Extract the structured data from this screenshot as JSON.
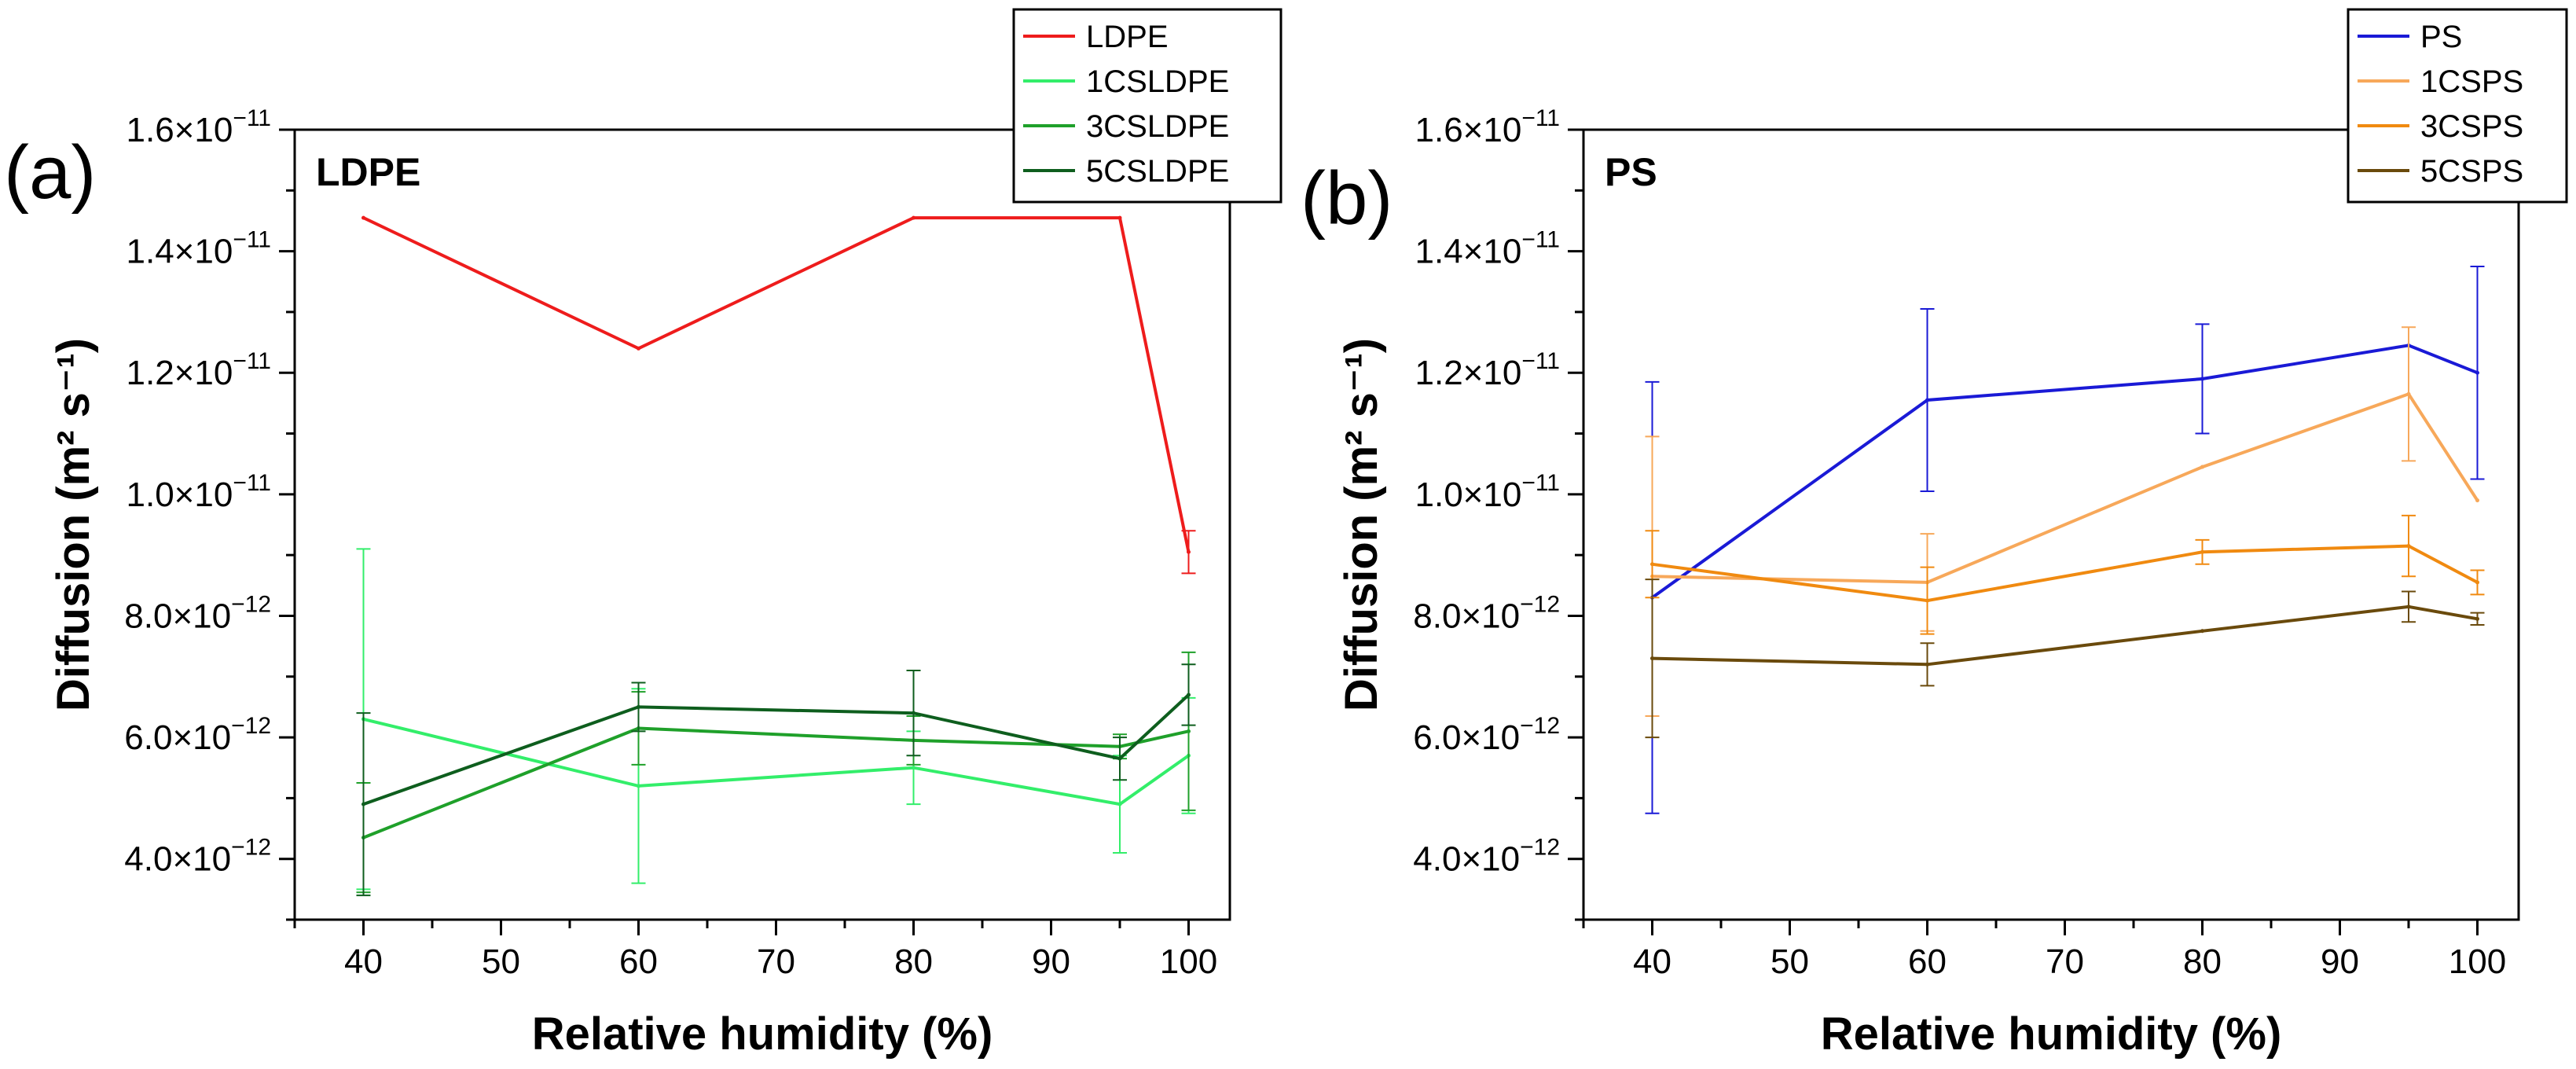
{
  "chart_data": [
    {
      "type": "line",
      "panel_label": "(a)",
      "title": "LDPE",
      "xlabel": "Relative humidity (%)",
      "ylabel": "Diffusion (m² s⁻¹)",
      "xlim": [
        35,
        103
      ],
      "ylim": [
        3e-12,
        1.6e-11
      ],
      "xticks": [
        40,
        50,
        60,
        70,
        80,
        90,
        100
      ],
      "yticks": [
        4e-12,
        6e-12,
        8e-12,
        1e-11,
        1.2e-11,
        1.4e-11,
        1.6e-11
      ],
      "ytick_labels": [
        {
          "mant": "4.0×10",
          "exp": "−12"
        },
        {
          "mant": "6.0×10",
          "exp": "−12"
        },
        {
          "mant": "8.0×10",
          "exp": "−12"
        },
        {
          "mant": "1.0×10",
          "exp": "−11"
        },
        {
          "mant": "1.2×10",
          "exp": "−11"
        },
        {
          "mant": "1.4×10",
          "exp": "−11"
        },
        {
          "mant": "1.6×10",
          "exp": "−11"
        }
      ],
      "legend_position": "top-right",
      "series": [
        {
          "name": "LDPE",
          "color": "#ee1c1c",
          "x": [
            40,
            60,
            80,
            95,
            100
          ],
          "values": [
            1.455e-11,
            1.24e-11,
            1.455e-11,
            1.455e-11,
            9.05e-12
          ],
          "errors": [
            0,
            0,
            0,
            0,
            3.5e-13
          ]
        },
        {
          "name": "1CSLDPE",
          "color": "#33ee6a",
          "x": [
            40,
            60,
            80,
            95,
            100
          ],
          "values": [
            6.3e-12,
            5.2e-12,
            5.5e-12,
            4.9e-12,
            5.7e-12
          ],
          "errors": [
            2.8e-12,
            1.6e-12,
            6e-13,
            8e-13,
            9.5e-13
          ]
        },
        {
          "name": "3CSLDPE",
          "color": "#1fa02a",
          "x": [
            40,
            60,
            80,
            95,
            100
          ],
          "values": [
            4.35e-12,
            6.15e-12,
            5.95e-12,
            5.85e-12,
            6.1e-12
          ],
          "errors": [
            9e-13,
            6e-13,
            4e-13,
            2e-13,
            1.3e-12
          ]
        },
        {
          "name": "5CSLDPE",
          "color": "#0e5e1e",
          "x": [
            40,
            60,
            80,
            95,
            100
          ],
          "values": [
            4.9e-12,
            6.5e-12,
            6.4e-12,
            5.65e-12,
            6.7e-12
          ],
          "errors": [
            1.5e-12,
            4e-13,
            7e-13,
            3.5e-13,
            5e-13
          ]
        }
      ]
    },
    {
      "type": "line",
      "panel_label": "(b)",
      "title": "PS",
      "xlabel": "Relative humidity (%)",
      "ylabel": "Diffusion (m² s⁻¹)",
      "xlim": [
        35,
        103
      ],
      "ylim": [
        3e-12,
        1.6e-11
      ],
      "xticks": [
        40,
        50,
        60,
        70,
        80,
        90,
        100
      ],
      "yticks": [
        4e-12,
        6e-12,
        8e-12,
        1e-11,
        1.2e-11,
        1.4e-11,
        1.6e-11
      ],
      "ytick_labels": [
        {
          "mant": "4.0×10",
          "exp": "−12"
        },
        {
          "mant": "6.0×10",
          "exp": "−12"
        },
        {
          "mant": "8.0×10",
          "exp": "−12"
        },
        {
          "mant": "1.0×10",
          "exp": "−11"
        },
        {
          "mant": "1.2×10",
          "exp": "−11"
        },
        {
          "mant": "1.4×10",
          "exp": "−11"
        },
        {
          "mant": "1.6×10",
          "exp": "−11"
        }
      ],
      "legend_position": "top-right",
      "series": [
        {
          "name": "PS",
          "color": "#1a1ad6",
          "x": [
            40,
            60,
            80,
            95,
            100
          ],
          "values": [
            8.3e-12,
            1.155e-11,
            1.19e-11,
            1.245e-11,
            1.2e-11
          ],
          "errors": [
            3.55e-12,
            1.5e-12,
            9e-13,
            0,
            1.75e-12
          ]
        },
        {
          "name": "1CSPS",
          "color": "#f7a85a",
          "x": [
            40,
            60,
            80,
            95,
            100
          ],
          "values": [
            8.65e-12,
            8.55e-12,
            1.045e-11,
            1.165e-11,
            9.9e-12
          ],
          "errors": [
            2.3e-12,
            8e-13,
            0,
            1.1e-12,
            0
          ]
        },
        {
          "name": "3CSPS",
          "color": "#f08a10",
          "x": [
            40,
            60,
            80,
            95,
            100
          ],
          "values": [
            8.85e-12,
            8.25e-12,
            9.05e-12,
            9.15e-12,
            8.55e-12
          ],
          "errors": [
            5.5e-13,
            5.5e-13,
            2e-13,
            5e-13,
            2e-13
          ]
        },
        {
          "name": "5CSPS",
          "color": "#6a4a0c",
          "x": [
            40,
            60,
            80,
            95,
            100
          ],
          "values": [
            7.3e-12,
            7.2e-12,
            7.75e-12,
            8.15e-12,
            7.95e-12
          ],
          "errors": [
            1.3e-12,
            3.5e-13,
            0,
            2.5e-13,
            1e-13
          ]
        }
      ]
    }
  ]
}
